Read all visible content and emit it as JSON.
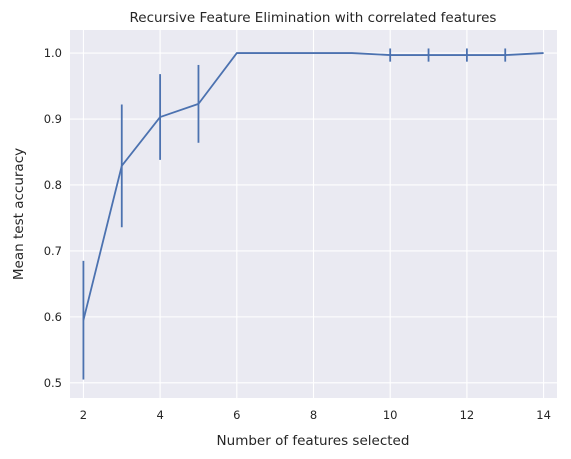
{
  "chart_data": {
    "type": "line",
    "title": "Recursive Feature Elimination with correlated features",
    "xlabel": "Number of features selected",
    "ylabel": "Mean test accuracy",
    "xlim": [
      1.65,
      14.35
    ],
    "ylim": [
      0.477,
      1.035
    ],
    "grid": true,
    "xticks": [
      2,
      4,
      6,
      8,
      10,
      12,
      14
    ],
    "yticks": [
      0.5,
      0.6,
      0.7,
      0.8,
      0.9,
      1.0
    ],
    "xtick_labels": [
      "2",
      "4",
      "6",
      "8",
      "10",
      "12",
      "14"
    ],
    "ytick_labels": [
      "0.5",
      "0.6",
      "0.7",
      "0.8",
      "0.9",
      "1.0"
    ],
    "series": [
      {
        "x": [
          2,
          3,
          4,
          5,
          6,
          7,
          8,
          9,
          10,
          11,
          12,
          13,
          14
        ],
        "y": [
          0.595,
          0.829,
          0.903,
          0.923,
          1.0,
          1.0,
          1.0,
          1.0,
          0.997,
          0.997,
          0.997,
          0.997,
          1.0
        ],
        "err": [
          0.09,
          0.093,
          0.065,
          0.059,
          0.0,
          0.0,
          0.0,
          0.0,
          0.01,
          0.01,
          0.01,
          0.01,
          0.0
        ]
      }
    ],
    "colors": {
      "series": "#4c72b0",
      "background": "#eaeaf2",
      "grid": "#ffffff"
    }
  }
}
